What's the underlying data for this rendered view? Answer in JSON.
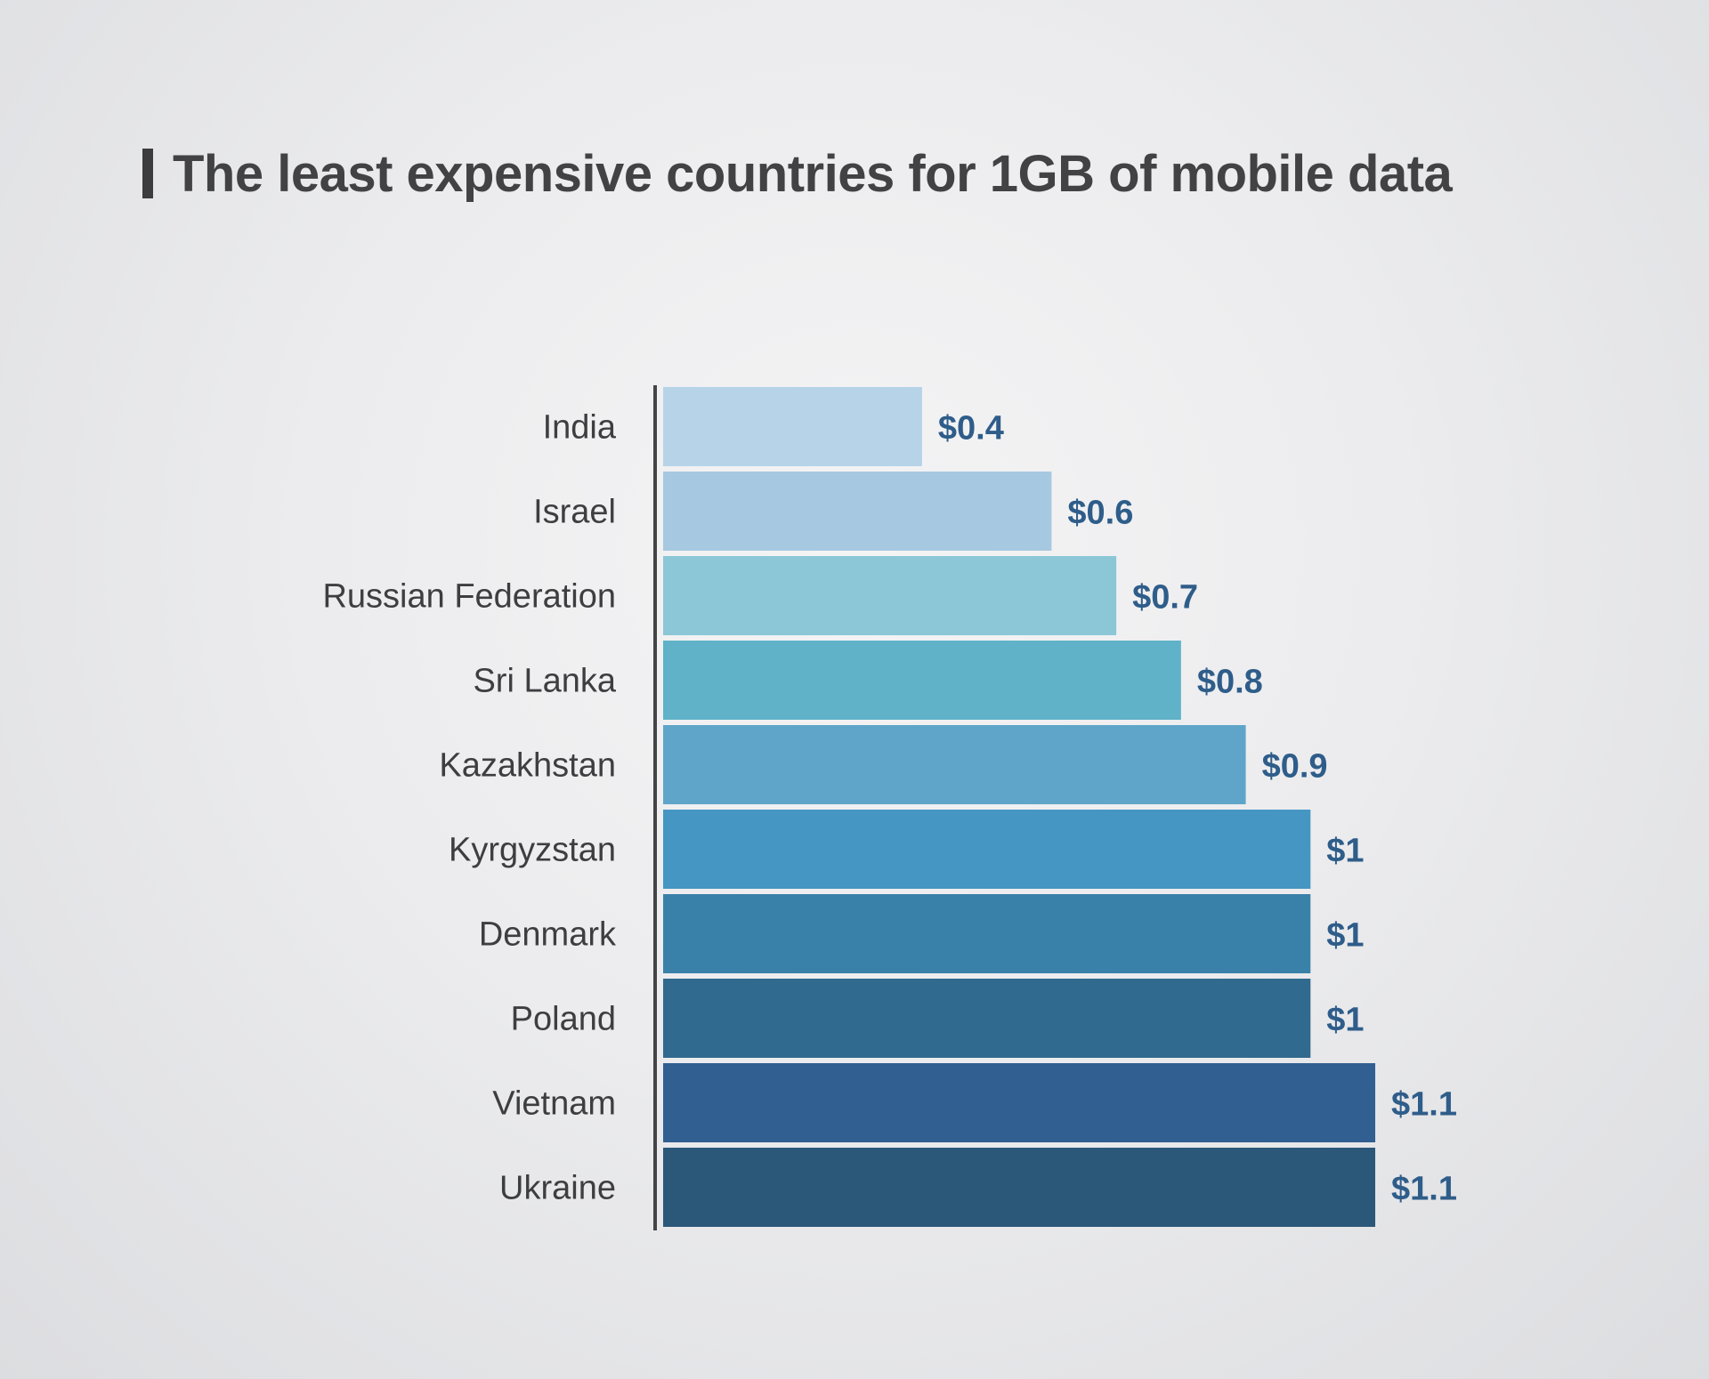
{
  "chart_data": {
    "type": "bar",
    "orientation": "horizontal",
    "title": "The least expensive countries for 1GB of mobile data",
    "categories": [
      "India",
      "Israel",
      "Russian Federation",
      "Sri Lanka",
      "Kazakhstan",
      "Kyrgyzstan",
      "Denmark",
      "Poland",
      "Vietnam",
      "Ukraine"
    ],
    "values": [
      0.4,
      0.6,
      0.7,
      0.8,
      0.9,
      1,
      1,
      1,
      1.1,
      1.1
    ],
    "value_labels": [
      "$0.4",
      "$0.6",
      "$0.7",
      "$0.8",
      "$0.9",
      "$1",
      "$1",
      "$1",
      "$1.1",
      "$1.1"
    ],
    "bar_colors": [
      "#b7d3e8",
      "#a7c8e1",
      "#8bc7d6",
      "#5fb2c8",
      "#5fa5c9",
      "#4596c2",
      "#3a81a9",
      "#306a8e",
      "#315f91",
      "#2b5879"
    ],
    "value_label_color": "#2f5d8a",
    "xlim": [
      0,
      1.1
    ],
    "grid": false,
    "legend": "none"
  }
}
